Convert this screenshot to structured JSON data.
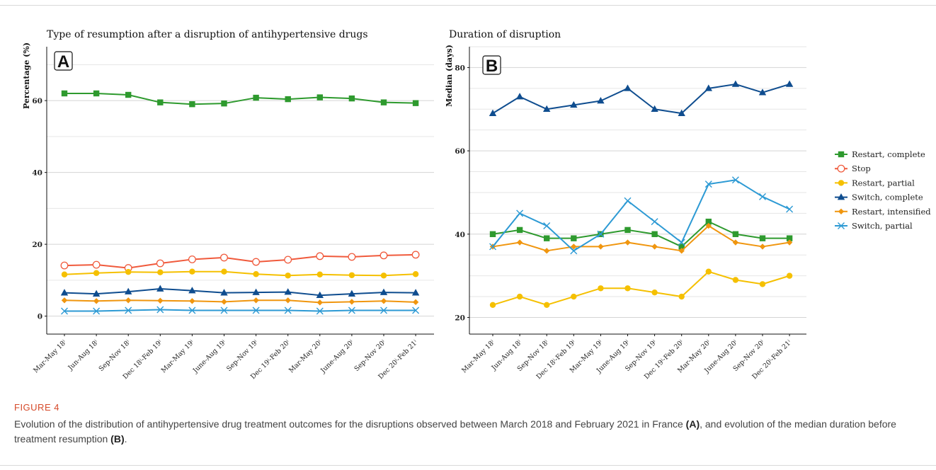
{
  "figure_label": "FIGURE 4",
  "caption": {
    "part1": "Evolution of the distribution of antihypertensive drug treatment outcomes for the disruptions observed between March 2018 and February 2021 in France ",
    "ref_a": "(A)",
    "part2": ", and evolution of the median duration before treatment resumption ",
    "ref_b": "(B)",
    "part3": "."
  },
  "series_styles": [
    {
      "name": "Restart, complete",
      "color": "#2e9a2e",
      "marker": "square"
    },
    {
      "name": "Stop",
      "color": "#f05a3c",
      "marker": "open-circle"
    },
    {
      "name": "Restart, partial",
      "color": "#f5c000",
      "marker": "circle"
    },
    {
      "name": "Switch, complete",
      "color": "#0f4d8f",
      "marker": "triangle"
    },
    {
      "name": "Restart, intensified",
      "color": "#f0960f",
      "marker": "diamond"
    },
    {
      "name": "Switch, partial",
      "color": "#2d9ad4",
      "marker": "x"
    }
  ],
  "chart_data": [
    {
      "type": "line",
      "panel": "A",
      "title": "Type of resumption after a disruption of antihypertensive drugs",
      "xlabel": "",
      "ylabel": "Percentage (%)",
      "ylim": [
        -5,
        75
      ],
      "yticks": [
        0,
        20,
        40,
        60
      ],
      "grid": true,
      "categories": [
        "Mar-May 18ⁱ",
        "Jun-Aug 18ⁱ",
        "Sep-Nov 18ⁱ",
        "Dec 18ⁱ-Feb 19ⁱ",
        "Mar-May 19ⁱ",
        "June-Aug 19ⁱ",
        "Sep-Nov 19ⁱ",
        "Dec 19ⁱ-Feb 20ⁱ",
        "Mar-May 20ⁱ",
        "June-Aug 20ⁱ",
        "Sep-Nov 20ⁱ",
        "Dec 20ⁱ-Feb 21ⁱ"
      ],
      "series": [
        {
          "name": "Restart, complete",
          "values": [
            62.0,
            62.0,
            61.6,
            59.5,
            59.0,
            59.2,
            60.8,
            60.4,
            60.9,
            60.6,
            59.5,
            59.3
          ]
        },
        {
          "name": "Stop",
          "values": [
            14.1,
            14.3,
            13.4,
            14.7,
            15.8,
            16.3,
            15.1,
            15.7,
            16.7,
            16.5,
            16.9,
            17.1
          ]
        },
        {
          "name": "Restart, partial",
          "values": [
            11.6,
            12.0,
            12.3,
            12.2,
            12.4,
            12.4,
            11.7,
            11.3,
            11.6,
            11.4,
            11.3,
            11.7
          ]
        },
        {
          "name": "Switch, complete",
          "values": [
            6.5,
            6.2,
            6.8,
            7.6,
            7.1,
            6.5,
            6.6,
            6.7,
            5.8,
            6.2,
            6.6,
            6.5
          ]
        },
        {
          "name": "Restart, intensified",
          "values": [
            4.4,
            4.2,
            4.4,
            4.3,
            4.2,
            4.0,
            4.4,
            4.4,
            3.8,
            4.0,
            4.2,
            3.9
          ]
        },
        {
          "name": "Switch, partial",
          "values": [
            1.4,
            1.4,
            1.6,
            1.8,
            1.6,
            1.6,
            1.6,
            1.6,
            1.4,
            1.6,
            1.6,
            1.6
          ]
        }
      ]
    },
    {
      "type": "line",
      "panel": "B",
      "title": "Duration of disruption",
      "xlabel": "",
      "ylabel": "Median (days)",
      "ylim": [
        16,
        85
      ],
      "yticks": [
        20,
        40,
        60,
        80
      ],
      "grid": true,
      "legend": "right",
      "categories": [
        "Mar-May 18ⁱ",
        "Jun-Aug 18ⁱ",
        "Sep-Nov 18ⁱ",
        "Dec 18ⁱ-Feb 19ⁱ",
        "Mar-May 19ⁱ",
        "June-Aug 19ⁱ",
        "Sep-Nov 19ⁱ",
        "Dec 19ⁱ-Feb 20ⁱ",
        "Mar-May 20ⁱ",
        "June-Aug 20ⁱ",
        "Sep-Nov 20ⁱ",
        "Dec 20ⁱ-Feb 21ⁱ"
      ],
      "series": [
        {
          "name": "Restart, complete",
          "values": [
            40,
            41,
            39,
            39,
            40,
            41,
            40,
            37,
            43,
            40,
            39,
            39
          ]
        },
        {
          "name": "Restart, partial",
          "values": [
            23,
            25,
            23,
            25,
            27,
            27,
            26,
            25,
            31,
            29,
            28,
            30
          ]
        },
        {
          "name": "Switch, complete",
          "values": [
            69,
            73,
            70,
            71,
            72,
            75,
            70,
            69,
            75,
            76,
            74,
            76
          ]
        },
        {
          "name": "Restart, intensified",
          "values": [
            37,
            38,
            36,
            37,
            37,
            38,
            37,
            36,
            42,
            38,
            37,
            38
          ]
        },
        {
          "name": "Switch, partial",
          "values": [
            37,
            45,
            42,
            36,
            40,
            48,
            43,
            38,
            52,
            53,
            49,
            46
          ]
        }
      ]
    }
  ]
}
